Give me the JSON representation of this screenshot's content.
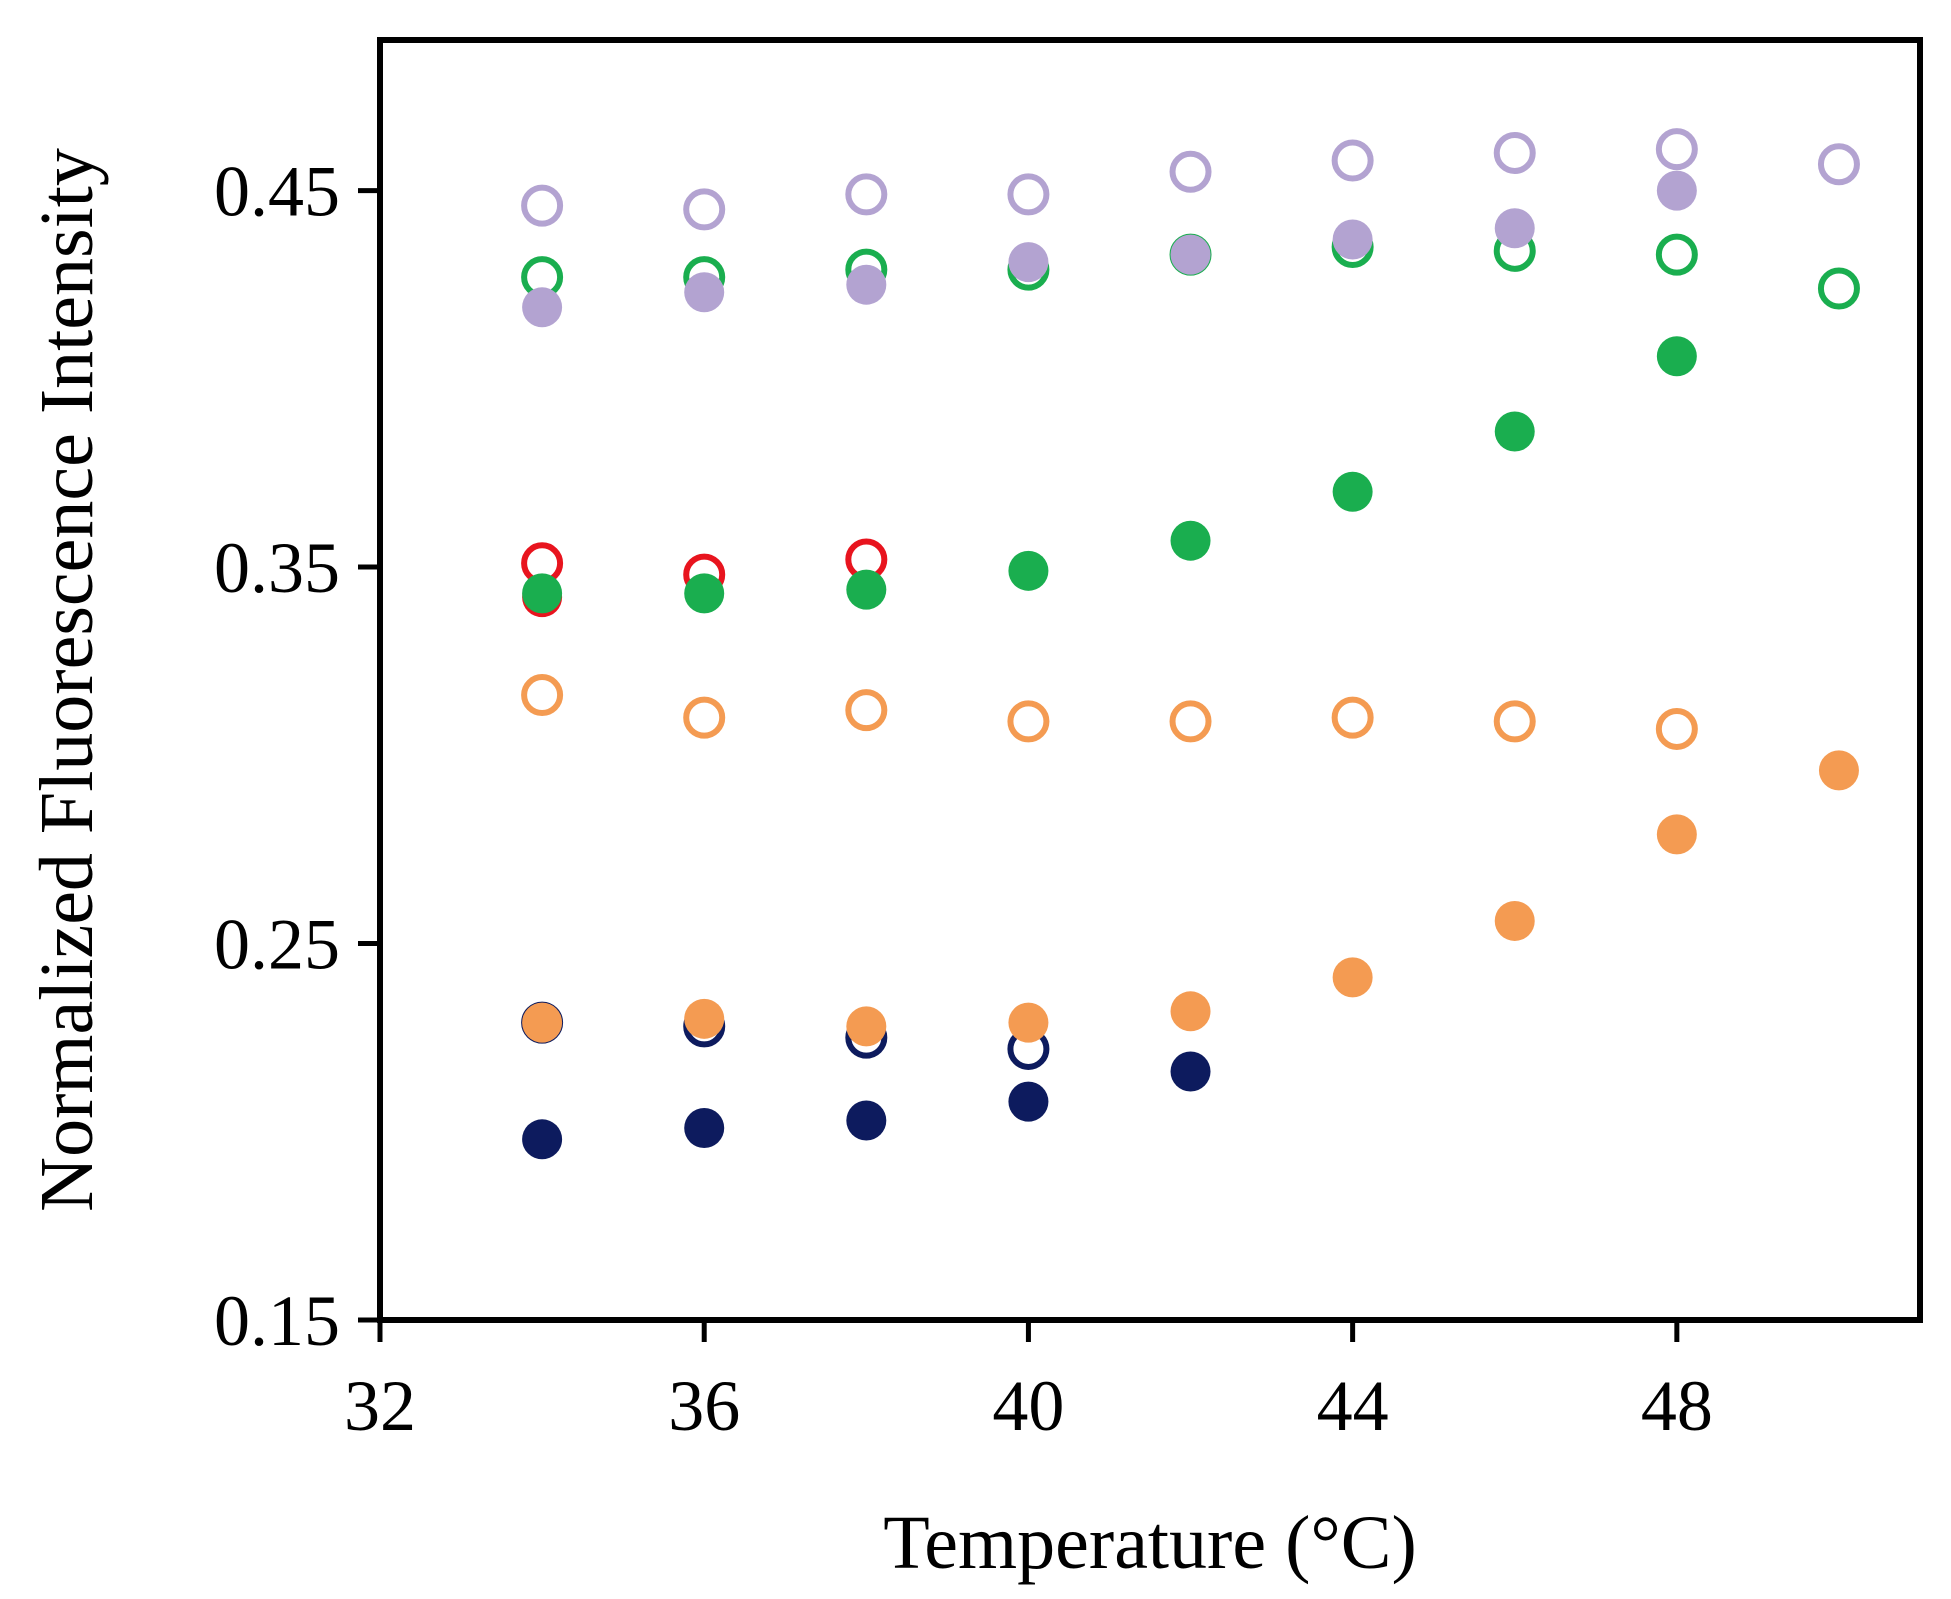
{
  "chart_data": {
    "type": "scatter",
    "title": "",
    "xlabel": "Temperature (°C)",
    "ylabel": "Normalized Fluorescence Intensity",
    "xlim": [
      32,
      51
    ],
    "ylim": [
      0.15,
      0.49
    ],
    "xticks": [
      32,
      36,
      40,
      44,
      48
    ],
    "yticks": [
      0.15,
      0.25,
      0.35,
      0.45
    ],
    "xtick_labels": [
      "32",
      "36",
      "40",
      "44",
      "48"
    ],
    "ytick_labels": [
      "0.15",
      "0.25",
      "0.35",
      "0.45"
    ],
    "grid": false,
    "series": [
      {
        "name": "navy-open",
        "color": "#0d1b5e",
        "filled": false,
        "x": [
          34,
          36,
          38,
          40
        ],
        "y": [
          0.229,
          0.228,
          0.225,
          0.222
        ]
      },
      {
        "name": "navy-filled",
        "color": "#0d1b5e",
        "filled": true,
        "x": [
          34,
          36,
          38,
          40,
          42
        ],
        "y": [
          0.198,
          0.201,
          0.203,
          0.208,
          0.216
        ]
      },
      {
        "name": "red-open",
        "color": "#e8141e",
        "filled": false,
        "x": [
          34,
          36,
          38
        ],
        "y": [
          0.351,
          0.348,
          0.352
        ]
      },
      {
        "name": "red-filled",
        "color": "#e8141e",
        "filled": true,
        "x": [
          34
        ],
        "y": [
          0.342
        ]
      },
      {
        "name": "green-open",
        "color": "#1aae4f",
        "filled": false,
        "x": [
          34,
          36,
          38,
          40,
          42,
          44,
          46,
          48,
          50
        ],
        "y": [
          0.427,
          0.427,
          0.429,
          0.429,
          0.433,
          0.435,
          0.434,
          0.433,
          0.424
        ]
      },
      {
        "name": "green-filled",
        "color": "#1aae4f",
        "filled": true,
        "x": [
          34,
          36,
          38,
          40,
          42,
          44,
          46,
          48
        ],
        "y": [
          0.343,
          0.343,
          0.344,
          0.349,
          0.357,
          0.37,
          0.386,
          0.406
        ]
      },
      {
        "name": "orange-open",
        "color": "#f49b52",
        "filled": false,
        "x": [
          34,
          36,
          38,
          40,
          42,
          44,
          46,
          48
        ],
        "y": [
          0.316,
          0.31,
          0.312,
          0.309,
          0.309,
          0.31,
          0.309,
          0.307
        ]
      },
      {
        "name": "orange-filled",
        "color": "#f49b52",
        "filled": true,
        "x": [
          34,
          36,
          38,
          40,
          42,
          44,
          46,
          48,
          50
        ],
        "y": [
          0.229,
          0.23,
          0.228,
          0.229,
          0.232,
          0.241,
          0.256,
          0.279,
          0.296
        ]
      },
      {
        "name": "purple-open",
        "color": "#b3a3d1",
        "filled": false,
        "x": [
          34,
          36,
          38,
          40,
          42,
          44,
          46,
          48,
          50
        ],
        "y": [
          0.446,
          0.445,
          0.449,
          0.449,
          0.455,
          0.458,
          0.46,
          0.461,
          0.457
        ]
      },
      {
        "name": "purple-filled",
        "color": "#b3a3d1",
        "filled": true,
        "x": [
          34,
          36,
          38,
          40,
          42,
          44,
          46,
          48
        ],
        "y": [
          0.419,
          0.423,
          0.425,
          0.431,
          0.433,
          0.437,
          0.44,
          0.45
        ]
      }
    ]
  }
}
